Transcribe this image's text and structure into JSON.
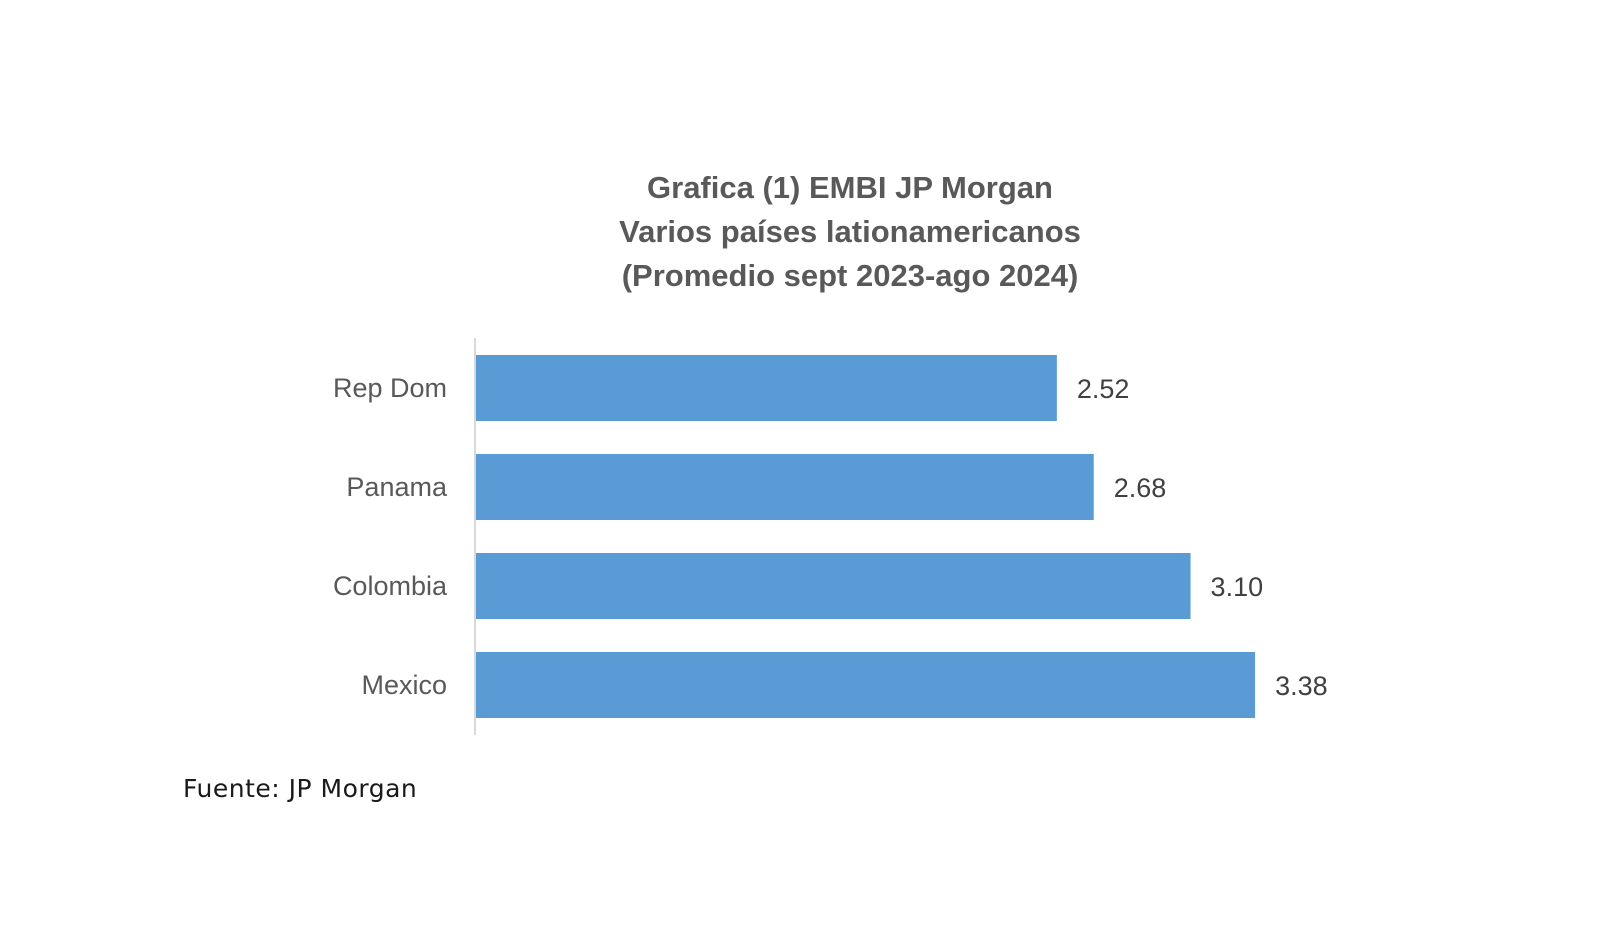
{
  "chart_data": {
    "type": "bar",
    "orientation": "horizontal",
    "title_lines": [
      "Grafica (1) EMBI JP Morgan",
      "Varios países lationamericanos",
      "(Promedio sept 2023-ago 2024)"
    ],
    "categories": [
      "Rep Dom",
      "Panama",
      "Colombia",
      "Mexico"
    ],
    "values": [
      2.52,
      2.68,
      3.1,
      3.38
    ],
    "value_labels": [
      "2.52",
      "2.68",
      "3.10",
      "3.38"
    ],
    "xlim": [
      0,
      3.5
    ],
    "bar_color": "#5B9BD5",
    "grid": false,
    "legend": "none"
  },
  "source": "Fuente: JP Morgan"
}
